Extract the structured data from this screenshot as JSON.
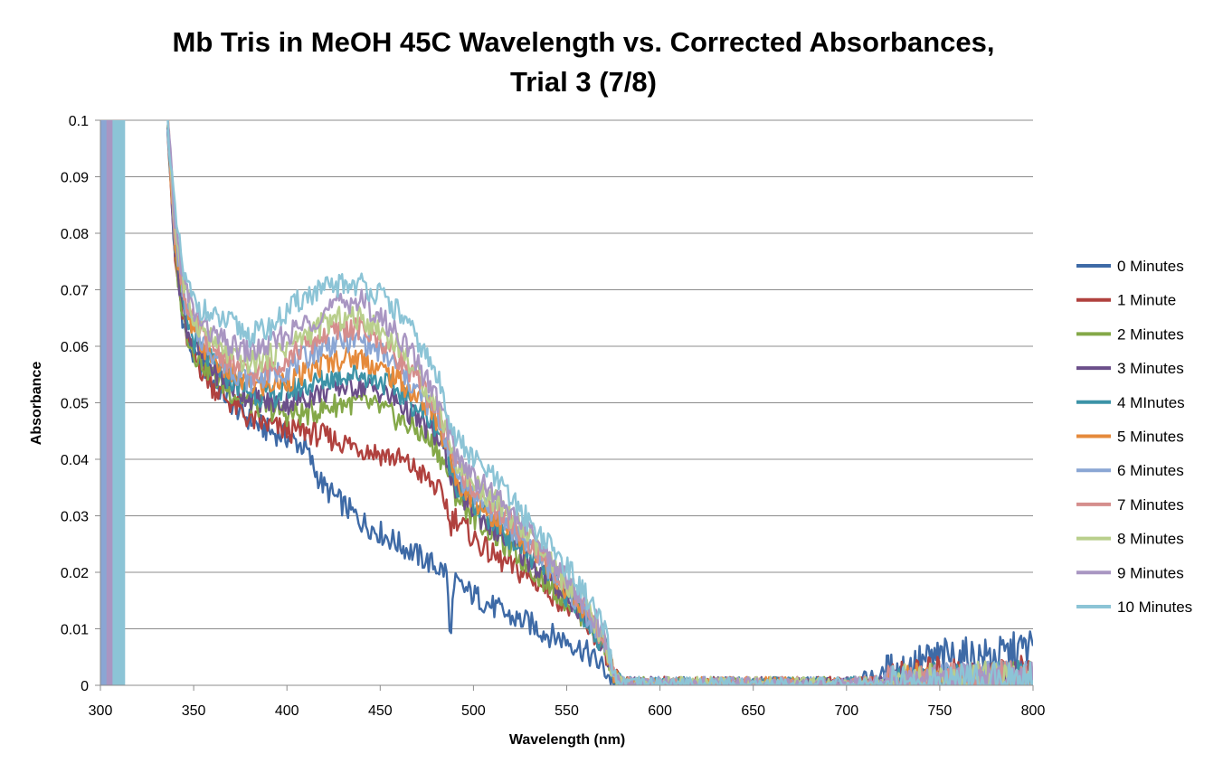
{
  "chart_data": {
    "type": "line",
    "title_lines": [
      "Mb Tris in MeOH 45C Wavelength vs. Corrected Absorbances,",
      "Trial 3 (7/8)"
    ],
    "xlabel": "Wavelength (nm)",
    "ylabel": "Absorbance",
    "xlim": [
      300,
      800
    ],
    "ylim": [
      0,
      0.1
    ],
    "x_ticks": [
      300,
      350,
      400,
      450,
      500,
      550,
      600,
      650,
      700,
      750,
      800
    ],
    "y_ticks": [
      0,
      0.01,
      0.02,
      0.03,
      0.04,
      0.05,
      0.06,
      0.07,
      0.08,
      0.09,
      0.1
    ],
    "x_tick_labels": [
      "300",
      "350",
      "400",
      "450",
      "500",
      "550",
      "600",
      "650",
      "700",
      "750",
      "800"
    ],
    "y_tick_labels": [
      "0",
      "0.01",
      "0.02",
      "0.03",
      "0.04",
      "0.05",
      "0.06",
      "0.07",
      "0.08",
      "0.09",
      "0.1"
    ],
    "grid": true,
    "legend_position": "right",
    "off_scale_band_x": [
      300,
      313
    ],
    "series": [
      {
        "name": "0 Minutes",
        "color": "#3e6aa6",
        "x": [
          336,
          340,
          345,
          350,
          360,
          370,
          380,
          390,
          400,
          410,
          415,
          420,
          430,
          440,
          450,
          460,
          470,
          480,
          486,
          487,
          490,
          500,
          510,
          520,
          530,
          540,
          550,
          560,
          570,
          575,
          580,
          600,
          650,
          700,
          720,
          750,
          780,
          800
        ],
        "y": [
          0.1,
          0.075,
          0.063,
          0.058,
          0.054,
          0.05,
          0.047,
          0.045,
          0.044,
          0.042,
          0.038,
          0.035,
          0.032,
          0.029,
          0.027,
          0.025,
          0.023,
          0.021,
          0.02,
          0.008,
          0.018,
          0.016,
          0.014,
          0.012,
          0.011,
          0.009,
          0.008,
          0.006,
          0.003,
          0.0005,
          0.0,
          0.0,
          0.0,
          0.0,
          0.002,
          0.005,
          0.005,
          0.007
        ]
      },
      {
        "name": "1 Minute",
        "color": "#b0413e",
        "x": [
          336,
          340,
          345,
          350,
          360,
          370,
          380,
          390,
          400,
          410,
          420,
          430,
          440,
          450,
          460,
          470,
          480,
          486,
          487,
          490,
          500,
          510,
          520,
          530,
          540,
          550,
          560,
          570,
          575,
          580,
          600,
          650,
          700,
          720,
          750,
          780,
          800
        ],
        "y": [
          0.1,
          0.075,
          0.063,
          0.058,
          0.053,
          0.05,
          0.047,
          0.046,
          0.045,
          0.045,
          0.044,
          0.043,
          0.042,
          0.041,
          0.04,
          0.038,
          0.035,
          0.032,
          0.028,
          0.03,
          0.026,
          0.023,
          0.021,
          0.019,
          0.017,
          0.014,
          0.011,
          0.007,
          0.002,
          0.0,
          0.0,
          0.0,
          0.0,
          0.0005,
          0.002,
          0.001,
          0.003
        ]
      },
      {
        "name": "2 Minutes",
        "color": "#84a848",
        "x": [
          336,
          340,
          345,
          350,
          360,
          370,
          380,
          390,
          400,
          410,
          420,
          430,
          440,
          450,
          460,
          470,
          480,
          486,
          490,
          500,
          510,
          520,
          530,
          540,
          550,
          560,
          570,
          575,
          580,
          600,
          650,
          700,
          750,
          800
        ],
        "y": [
          0.1,
          0.076,
          0.064,
          0.059,
          0.055,
          0.052,
          0.05,
          0.049,
          0.048,
          0.048,
          0.049,
          0.05,
          0.05,
          0.049,
          0.047,
          0.045,
          0.042,
          0.038,
          0.034,
          0.03,
          0.027,
          0.024,
          0.021,
          0.018,
          0.015,
          0.012,
          0.007,
          0.002,
          0.0,
          0.0,
          0.0,
          0.0,
          0.0005,
          0.001
        ]
      },
      {
        "name": "3 Minutes",
        "color": "#6b4f8a",
        "x": [
          336,
          340,
          345,
          350,
          360,
          370,
          380,
          390,
          400,
          410,
          420,
          430,
          440,
          450,
          460,
          470,
          480,
          486,
          490,
          500,
          510,
          520,
          530,
          540,
          550,
          560,
          570,
          575,
          580,
          600,
          650,
          700,
          750,
          800
        ],
        "y": [
          0.1,
          0.077,
          0.065,
          0.06,
          0.056,
          0.053,
          0.051,
          0.05,
          0.05,
          0.051,
          0.052,
          0.053,
          0.053,
          0.052,
          0.05,
          0.047,
          0.044,
          0.04,
          0.035,
          0.031,
          0.028,
          0.025,
          0.022,
          0.019,
          0.016,
          0.012,
          0.007,
          0.002,
          0.0,
          0.0,
          0.0,
          0.0,
          0.0005,
          0.001
        ]
      },
      {
        "name": "4 MInutes",
        "color": "#3c93a7",
        "x": [
          336,
          340,
          345,
          350,
          360,
          370,
          380,
          390,
          400,
          410,
          420,
          430,
          440,
          450,
          460,
          470,
          480,
          486,
          490,
          500,
          510,
          520,
          530,
          540,
          550,
          560,
          570,
          575,
          580,
          600,
          650,
          700,
          750,
          800
        ],
        "y": [
          0.1,
          0.078,
          0.066,
          0.061,
          0.057,
          0.054,
          0.052,
          0.051,
          0.052,
          0.053,
          0.054,
          0.055,
          0.055,
          0.054,
          0.052,
          0.049,
          0.046,
          0.041,
          0.036,
          0.032,
          0.029,
          0.026,
          0.023,
          0.02,
          0.016,
          0.012,
          0.007,
          0.002,
          0.0,
          0.0,
          0.0,
          0.0,
          0.0005,
          0.001
        ]
      },
      {
        "name": "5 Minutes",
        "color": "#e58a3b",
        "x": [
          336,
          340,
          345,
          350,
          360,
          370,
          380,
          390,
          400,
          410,
          420,
          430,
          440,
          450,
          460,
          470,
          480,
          486,
          490,
          500,
          510,
          520,
          530,
          540,
          550,
          560,
          570,
          575,
          580,
          600,
          650,
          700,
          750,
          800
        ],
        "y": [
          0.1,
          0.079,
          0.067,
          0.062,
          0.058,
          0.055,
          0.053,
          0.053,
          0.054,
          0.055,
          0.057,
          0.058,
          0.058,
          0.056,
          0.054,
          0.051,
          0.047,
          0.042,
          0.037,
          0.033,
          0.03,
          0.027,
          0.024,
          0.021,
          0.017,
          0.013,
          0.008,
          0.002,
          0.0,
          0.0,
          0.0,
          0.0,
          0.0005,
          0.001
        ]
      },
      {
        "name": "6 Minutes",
        "color": "#8aa6d4",
        "x": [
          336,
          340,
          345,
          350,
          360,
          370,
          380,
          390,
          400,
          410,
          420,
          430,
          440,
          450,
          460,
          470,
          480,
          486,
          490,
          500,
          510,
          520,
          530,
          540,
          550,
          560,
          570,
          575,
          580,
          600,
          650,
          700,
          750,
          800
        ],
        "y": [
          0.1,
          0.08,
          0.068,
          0.063,
          0.059,
          0.056,
          0.054,
          0.055,
          0.056,
          0.058,
          0.06,
          0.061,
          0.061,
          0.059,
          0.056,
          0.052,
          0.048,
          0.043,
          0.038,
          0.034,
          0.031,
          0.028,
          0.025,
          0.021,
          0.017,
          0.013,
          0.008,
          0.002,
          0.0,
          0.0,
          0.0,
          0.0,
          0.0005,
          0.001
        ]
      },
      {
        "name": "7 Minutes",
        "color": "#d58e8d",
        "x": [
          336,
          340,
          345,
          350,
          360,
          370,
          380,
          390,
          400,
          410,
          420,
          430,
          440,
          450,
          460,
          470,
          480,
          486,
          490,
          500,
          510,
          520,
          530,
          540,
          550,
          560,
          570,
          575,
          580,
          600,
          650,
          700,
          750,
          800
        ],
        "y": [
          0.1,
          0.08,
          0.069,
          0.064,
          0.06,
          0.057,
          0.055,
          0.056,
          0.058,
          0.06,
          0.062,
          0.063,
          0.063,
          0.061,
          0.058,
          0.054,
          0.049,
          0.044,
          0.039,
          0.035,
          0.032,
          0.029,
          0.025,
          0.022,
          0.018,
          0.013,
          0.008,
          0.002,
          0.0,
          0.0,
          0.0,
          0.0,
          0.0005,
          0.001
        ]
      },
      {
        "name": "8 Minutes",
        "color": "#b9cf8c",
        "x": [
          336,
          340,
          345,
          350,
          360,
          370,
          380,
          390,
          400,
          410,
          420,
          430,
          440,
          450,
          460,
          470,
          480,
          486,
          490,
          500,
          510,
          520,
          530,
          540,
          550,
          560,
          570,
          575,
          580,
          600,
          650,
          700,
          750,
          800
        ],
        "y": [
          0.1,
          0.081,
          0.07,
          0.065,
          0.061,
          0.058,
          0.057,
          0.058,
          0.06,
          0.062,
          0.064,
          0.065,
          0.065,
          0.063,
          0.06,
          0.055,
          0.05,
          0.045,
          0.04,
          0.036,
          0.033,
          0.03,
          0.026,
          0.022,
          0.018,
          0.014,
          0.008,
          0.002,
          0.0,
          0.0,
          0.0,
          0.0,
          0.0005,
          0.001
        ]
      },
      {
        "name": "9 Minutes",
        "color": "#a996c2",
        "x": [
          336,
          340,
          345,
          350,
          360,
          370,
          380,
          390,
          400,
          410,
          420,
          430,
          440,
          450,
          460,
          470,
          480,
          486,
          490,
          500,
          510,
          520,
          530,
          540,
          550,
          560,
          570,
          575,
          580,
          600,
          650,
          700,
          750,
          800
        ],
        "y": [
          0.1,
          0.082,
          0.071,
          0.066,
          0.062,
          0.06,
          0.059,
          0.06,
          0.062,
          0.064,
          0.066,
          0.068,
          0.068,
          0.065,
          0.062,
          0.057,
          0.051,
          0.046,
          0.041,
          0.037,
          0.034,
          0.031,
          0.027,
          0.023,
          0.019,
          0.014,
          0.009,
          0.002,
          0.0,
          0.0,
          0.0,
          0.0,
          0.0005,
          0.001
        ]
      },
      {
        "name": "10 Minutes",
        "color": "#8cc4d6",
        "x": [
          336,
          340,
          345,
          350,
          360,
          370,
          380,
          390,
          400,
          410,
          420,
          430,
          440,
          450,
          460,
          470,
          480,
          486,
          490,
          500,
          510,
          520,
          530,
          540,
          550,
          560,
          570,
          575,
          580,
          600,
          650,
          700,
          750,
          800
        ],
        "y": [
          0.1,
          0.083,
          0.072,
          0.068,
          0.065,
          0.064,
          0.062,
          0.063,
          0.066,
          0.069,
          0.07,
          0.071,
          0.071,
          0.069,
          0.066,
          0.061,
          0.055,
          0.049,
          0.044,
          0.04,
          0.037,
          0.033,
          0.029,
          0.025,
          0.021,
          0.016,
          0.01,
          0.002,
          0.0,
          0.0,
          0.0,
          0.0,
          0.0005,
          0.001
        ]
      }
    ]
  }
}
